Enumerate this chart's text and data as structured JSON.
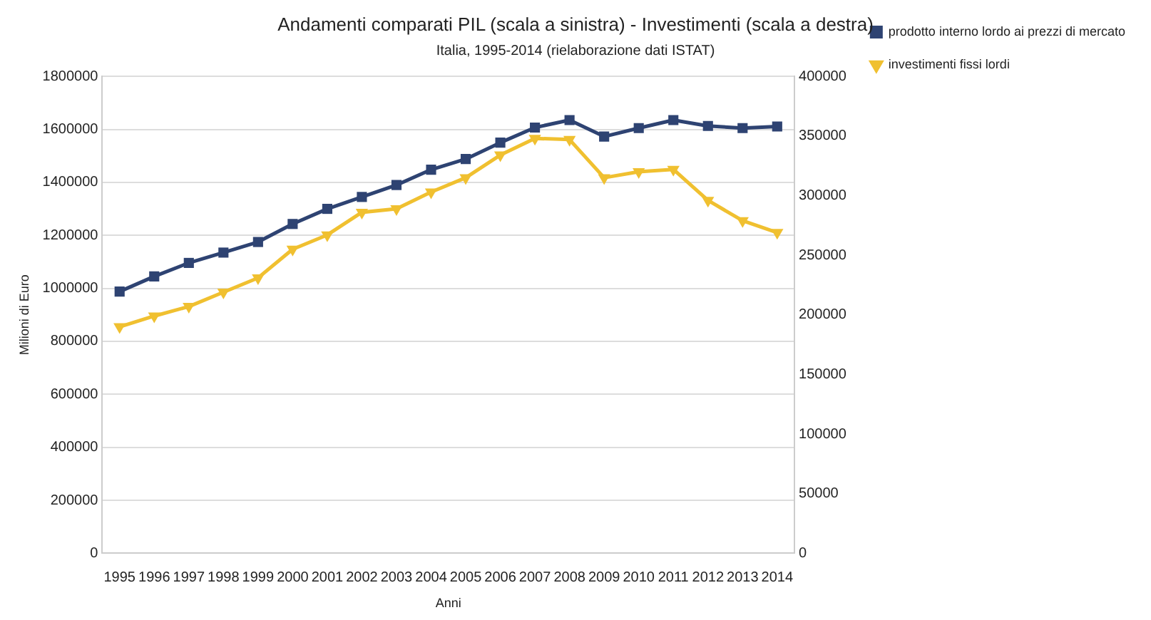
{
  "chart_data": {
    "type": "line",
    "title": "Andamenti comparati PIL (scala a sinistra) - Investimenti (scala a destra)",
    "subtitle": "Italia, 1995-2014 (rielaborazione dati ISTAT)",
    "xlabel": "Anni",
    "ylabel": "Milioni di Euro",
    "categories": [
      "1995",
      "1996",
      "1997",
      "1998",
      "1999",
      "2000",
      "2001",
      "2002",
      "2003",
      "2004",
      "2005",
      "2006",
      "2007",
      "2008",
      "2009",
      "2010",
      "2011",
      "2012",
      "2013",
      "2014"
    ],
    "series": [
      {
        "name": "prodotto interno lordo ai prezzi di mercato",
        "color": "#2e4372",
        "marker": "square",
        "values": [
          988000,
          1045000,
          1096000,
          1135000,
          1175000,
          1243000,
          1300000,
          1345000,
          1390000,
          1448000,
          1488000,
          1550000,
          1607000,
          1635000,
          1573000,
          1605000,
          1635000,
          1613000,
          1605000,
          1611000
        ]
      },
      {
        "name": "investimenti fissi lordi",
        "color": "#f0c030",
        "marker": "triangle",
        "axis": "y2",
        "values": [
          190000,
          199000,
          207000,
          219000,
          231000,
          255000,
          267000,
          286000,
          289000,
          303000,
          315000,
          334000,
          348000,
          347000,
          315000,
          320000,
          322000,
          296000,
          279000,
          269000
        ]
      }
    ],
    "ylim": [
      0,
      1800000
    ],
    "yticks": [
      0,
      200000,
      400000,
      600000,
      800000,
      1000000,
      1200000,
      1400000,
      1600000,
      1800000
    ],
    "y2lim": [
      0,
      400000
    ],
    "y2ticks": [
      0,
      50000,
      100000,
      150000,
      200000,
      250000,
      300000,
      350000,
      400000
    ],
    "grid": "y",
    "legend": "right",
    "line_style": "solid"
  }
}
